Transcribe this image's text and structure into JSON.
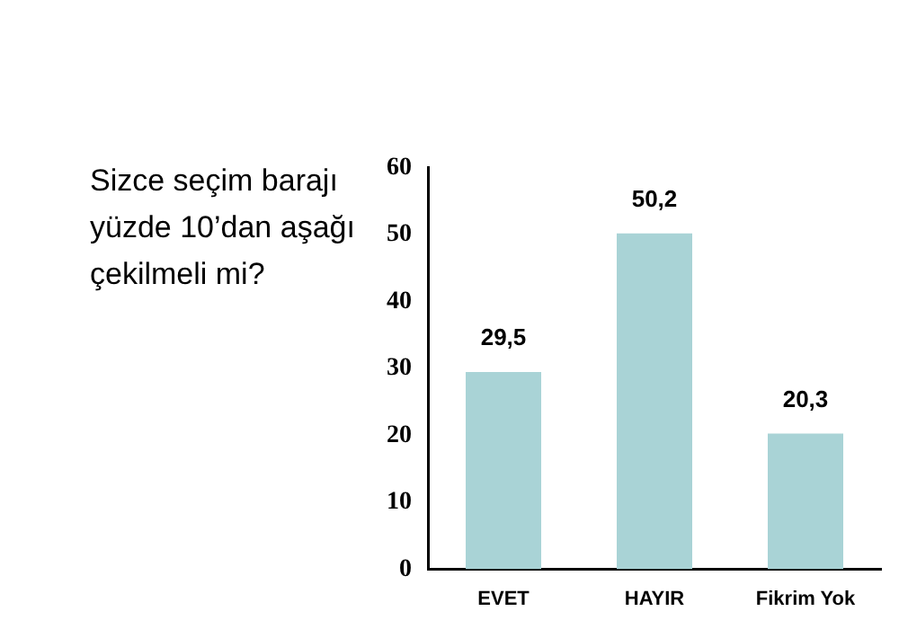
{
  "chart_data": {
    "type": "bar",
    "title": "Sizce seçim barajı yüzde 10’dan aşağı çekilmeli mi?",
    "categories": [
      "EVET",
      "HAYIR",
      "Fikrim Yok"
    ],
    "values": [
      29.5,
      50.2,
      20.3
    ],
    "value_labels": [
      "29,5",
      "50,2",
      "20,3"
    ],
    "color": "#a9d3d6",
    "ylim": [
      0,
      60
    ],
    "yticks": [
      0,
      10,
      20,
      30,
      40,
      50,
      60
    ],
    "grid": false,
    "legend": false
  }
}
